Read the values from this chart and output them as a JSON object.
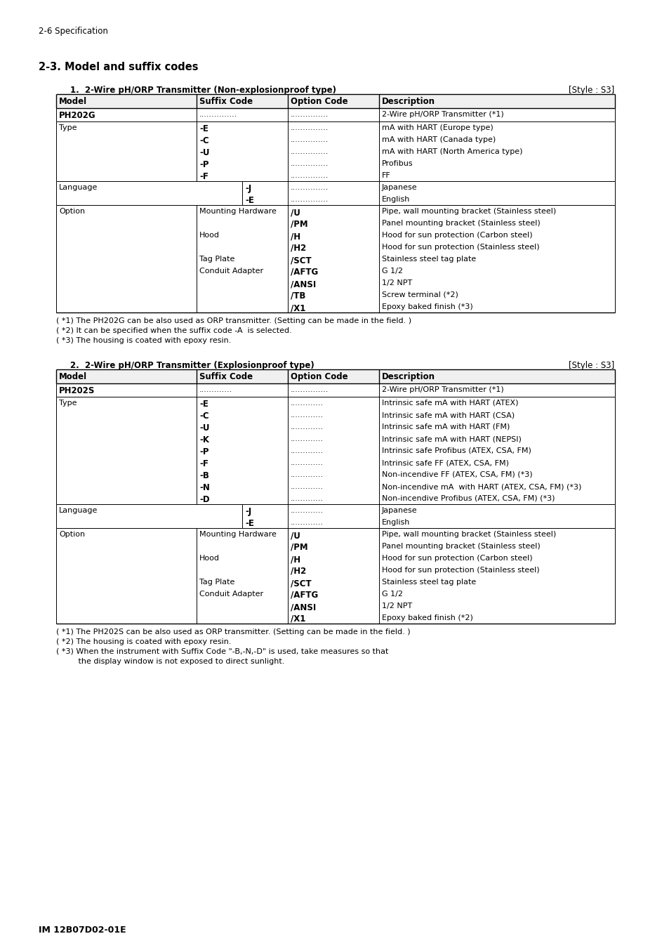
{
  "page_header": "2-6 Specification",
  "section_title": "2-3. Model and suffix codes",
  "page_footer": "IM 12B07D02-01E",
  "table1": {
    "title": "1.  2-Wire pH/ORP Transmitter (Non-explosionproof type)",
    "style": "[Style : S3]",
    "col_headers": [
      "Model",
      "Suffix Code",
      "Option Code",
      "Description"
    ],
    "footnotes": [
      "( *1) The PH202G can be also used as ORP transmitter. (Setting can be made in the field. )",
      "( *2) It can be specified when the suffix code -A  is selected.",
      "( *3) The housing is coated with epoxy resin."
    ]
  },
  "table2": {
    "title": "2.  2-Wire pH/ORP Transmitter (Explosionproof type)",
    "style": "[Style : S3]",
    "col_headers": [
      "Model",
      "Suffix Code",
      "Option Code",
      "Description"
    ],
    "footnotes": [
      "( *1) The PH202S can be also used as ORP transmitter. (Setting can be made in the field. )",
      "( *2) The housing is coated with epoxy resin.",
      "( *3) When the instrument with Suffix Code \"-B,-N,-D\" is used, take measures so that",
      "         the display window is not exposed to direct sunlight."
    ]
  }
}
